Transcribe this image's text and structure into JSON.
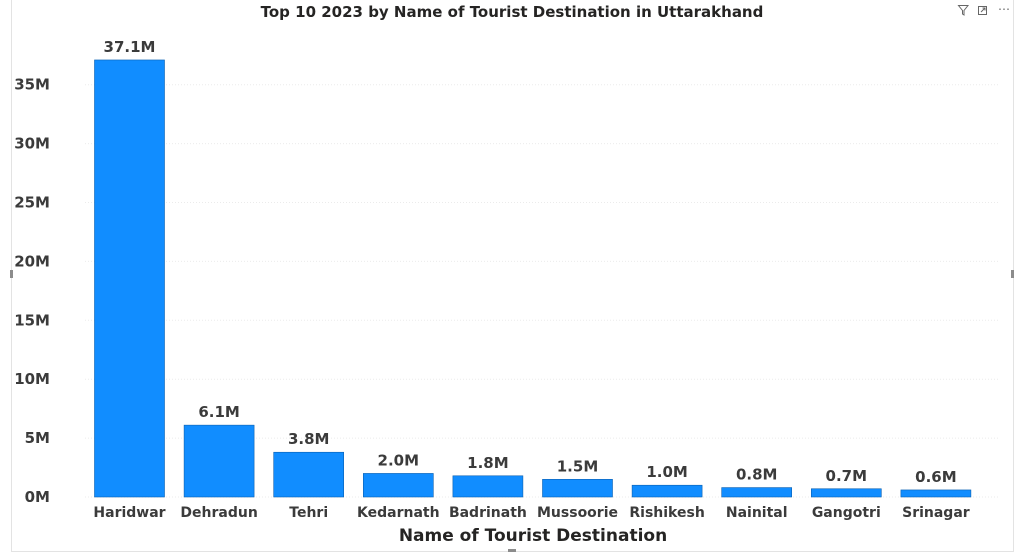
{
  "visual_header": {
    "icons": [
      "filter-icon",
      "focus-mode-icon",
      "more-options-icon"
    ],
    "more_label": "⋯"
  },
  "chart_data": {
    "type": "bar",
    "title": "Top 10 2023 by Name of Tourist Destination in Uttarakhand",
    "xlabel": "Name of Tourist Destination",
    "ylabel": "",
    "categories": [
      "Haridwar",
      "Dehradun",
      "Tehri",
      "Kedarnath",
      "Badrinath",
      "Mussoorie",
      "Rishikesh",
      "Nainital",
      "Gangotri",
      "Srinagar"
    ],
    "values": [
      37.1,
      6.1,
      3.8,
      2.0,
      1.8,
      1.5,
      1.0,
      0.8,
      0.7,
      0.6
    ],
    "value_unit": "M",
    "data_labels": [
      "37.1M",
      "6.1M",
      "3.8M",
      "2.0M",
      "1.8M",
      "1.5M",
      "1.0M",
      "0.8M",
      "0.7M",
      "0.6M"
    ],
    "yticks": [
      0,
      5,
      10,
      15,
      20,
      25,
      30,
      35
    ],
    "ytick_labels": [
      "0M",
      "5M",
      "10M",
      "15M",
      "20M",
      "25M",
      "30M",
      "35M"
    ],
    "ylim": [
      0,
      40
    ],
    "grid": true,
    "bar_color": "#118DFF"
  }
}
